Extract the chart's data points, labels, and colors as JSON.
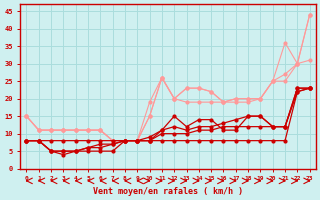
{
  "x": [
    0,
    1,
    2,
    3,
    4,
    5,
    6,
    7,
    8,
    9,
    10,
    11,
    12,
    13,
    14,
    15,
    16,
    17,
    18,
    19,
    20,
    21,
    22,
    23
  ],
  "background_color": "#cff0f0",
  "grid_color": "#aadddd",
  "xlabel": "Vent moyen/en rafales ( km/h )",
  "xlabel_color": "#cc0000",
  "tick_color": "#cc0000",
  "line_color_dark": "#cc0000",
  "line_color_light": "#ff9999",
  "ylim": [
    0,
    47
  ],
  "yticks": [
    0,
    5,
    10,
    15,
    20,
    25,
    30,
    35,
    40,
    45
  ],
  "lines_dark": [
    [
      8,
      8,
      8,
      8,
      8,
      8,
      8,
      8,
      8,
      8,
      8,
      8,
      8,
      8,
      8,
      8,
      8,
      8,
      8,
      8,
      8,
      8,
      22,
      23
    ],
    [
      8,
      8,
      5,
      5,
      5,
      6,
      6,
      7,
      8,
      8,
      8,
      10,
      10,
      10,
      11,
      11,
      12,
      12,
      12,
      12,
      12,
      12,
      22,
      23
    ],
    [
      8,
      8,
      5,
      5,
      5,
      6,
      7,
      7,
      8,
      8,
      8,
      11,
      12,
      11,
      12,
      12,
      13,
      14,
      15,
      15,
      12,
      12,
      23,
      23
    ],
    [
      8,
      8,
      5,
      4,
      5,
      5,
      5,
      5,
      8,
      8,
      9,
      11,
      15,
      12,
      14,
      14,
      11,
      11,
      15,
      15,
      12,
      12,
      23,
      23
    ]
  ],
  "lines_light": [
    [
      15,
      11,
      11,
      11,
      11,
      11,
      11,
      8,
      8,
      8,
      19,
      26,
      20,
      19,
      19,
      19,
      19,
      19,
      19,
      20,
      25,
      27,
      30,
      44
    ],
    [
      15,
      11,
      11,
      11,
      11,
      11,
      11,
      8,
      8,
      8,
      15,
      26,
      20,
      23,
      23,
      22,
      19,
      20,
      20,
      20,
      25,
      36,
      30,
      44
    ],
    [
      15,
      11,
      11,
      11,
      11,
      11,
      11,
      8,
      8,
      8,
      15,
      26,
      20,
      23,
      23,
      22,
      19,
      20,
      20,
      20,
      25,
      25,
      30,
      31
    ]
  ],
  "arrows": [
    -1,
    -1,
    -1,
    -1,
    -1,
    -1,
    -1,
    -1,
    -1,
    -1,
    1,
    1,
    1,
    1,
    1,
    1,
    1,
    1,
    1,
    1,
    1,
    1,
    1,
    1
  ]
}
